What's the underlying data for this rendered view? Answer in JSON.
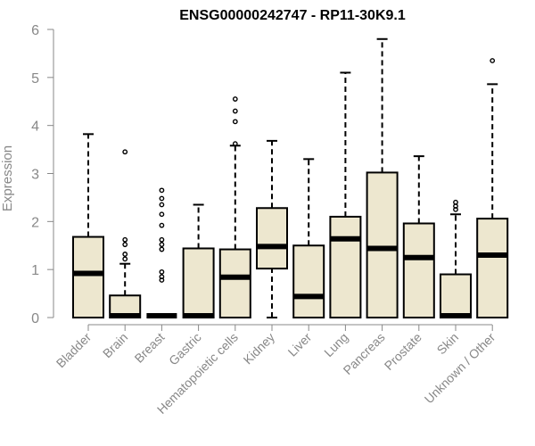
{
  "chart_data": {
    "type": "boxplot",
    "title": "ENSG00000242747 - RP11-30K9.1",
    "xlabel": "",
    "ylabel": "Expression",
    "ylim": [
      0,
      6
    ],
    "yticks": [
      0,
      1,
      2,
      3,
      4,
      5,
      6
    ],
    "grid": false,
    "box_color": "#EDE7CF",
    "categories": [
      "Bladder",
      "Brain",
      "Breast",
      "Gastric",
      "Hematopoietic cells",
      "Kidney",
      "Liver",
      "Lung",
      "Pancreas",
      "Prostate",
      "Skin",
      "Unknown / Other"
    ],
    "boxes": [
      {
        "min": 0,
        "q1": 0,
        "median": 0.92,
        "q3": 1.68,
        "max": 3.82,
        "outliers": []
      },
      {
        "min": 0,
        "q1": 0,
        "median": 0,
        "q3": 0.46,
        "max": 1.12,
        "outliers": [
          1.22,
          1.32,
          1.52,
          1.62,
          3.45
        ]
      },
      {
        "min": 0,
        "q1": 0,
        "median": 0,
        "q3": 0,
        "max": 0,
        "outliers": [
          0.78,
          0.85,
          0.95,
          1.42,
          1.52,
          1.62,
          1.92,
          2.15,
          2.35,
          2.48,
          2.65
        ]
      },
      {
        "min": 0,
        "q1": 0,
        "median": 0,
        "q3": 1.44,
        "max": 2.35,
        "outliers": []
      },
      {
        "min": 0,
        "q1": 0,
        "median": 0.84,
        "q3": 1.42,
        "max": 3.58,
        "outliers": [
          3.62,
          4.08,
          4.3,
          4.55
        ]
      },
      {
        "min": 0,
        "q1": 1.02,
        "median": 1.48,
        "q3": 2.28,
        "max": 3.68,
        "outliers": []
      },
      {
        "min": 0,
        "q1": 0,
        "median": 0.44,
        "q3": 1.5,
        "max": 3.3,
        "outliers": []
      },
      {
        "min": 0,
        "q1": 0,
        "median": 1.64,
        "q3": 2.1,
        "max": 5.1,
        "outliers": []
      },
      {
        "min": 0,
        "q1": 0,
        "median": 1.44,
        "q3": 3.02,
        "max": 5.8,
        "outliers": []
      },
      {
        "min": 0,
        "q1": 0,
        "median": 1.25,
        "q3": 1.96,
        "max": 3.36,
        "outliers": []
      },
      {
        "min": 0,
        "q1": 0,
        "median": 0,
        "q3": 0.9,
        "max": 2.15,
        "outliers": [
          2.25,
          2.32,
          2.4
        ]
      },
      {
        "min": 0,
        "q1": 0,
        "median": 1.3,
        "q3": 2.06,
        "max": 4.86,
        "outliers": [
          5.35
        ]
      }
    ]
  }
}
